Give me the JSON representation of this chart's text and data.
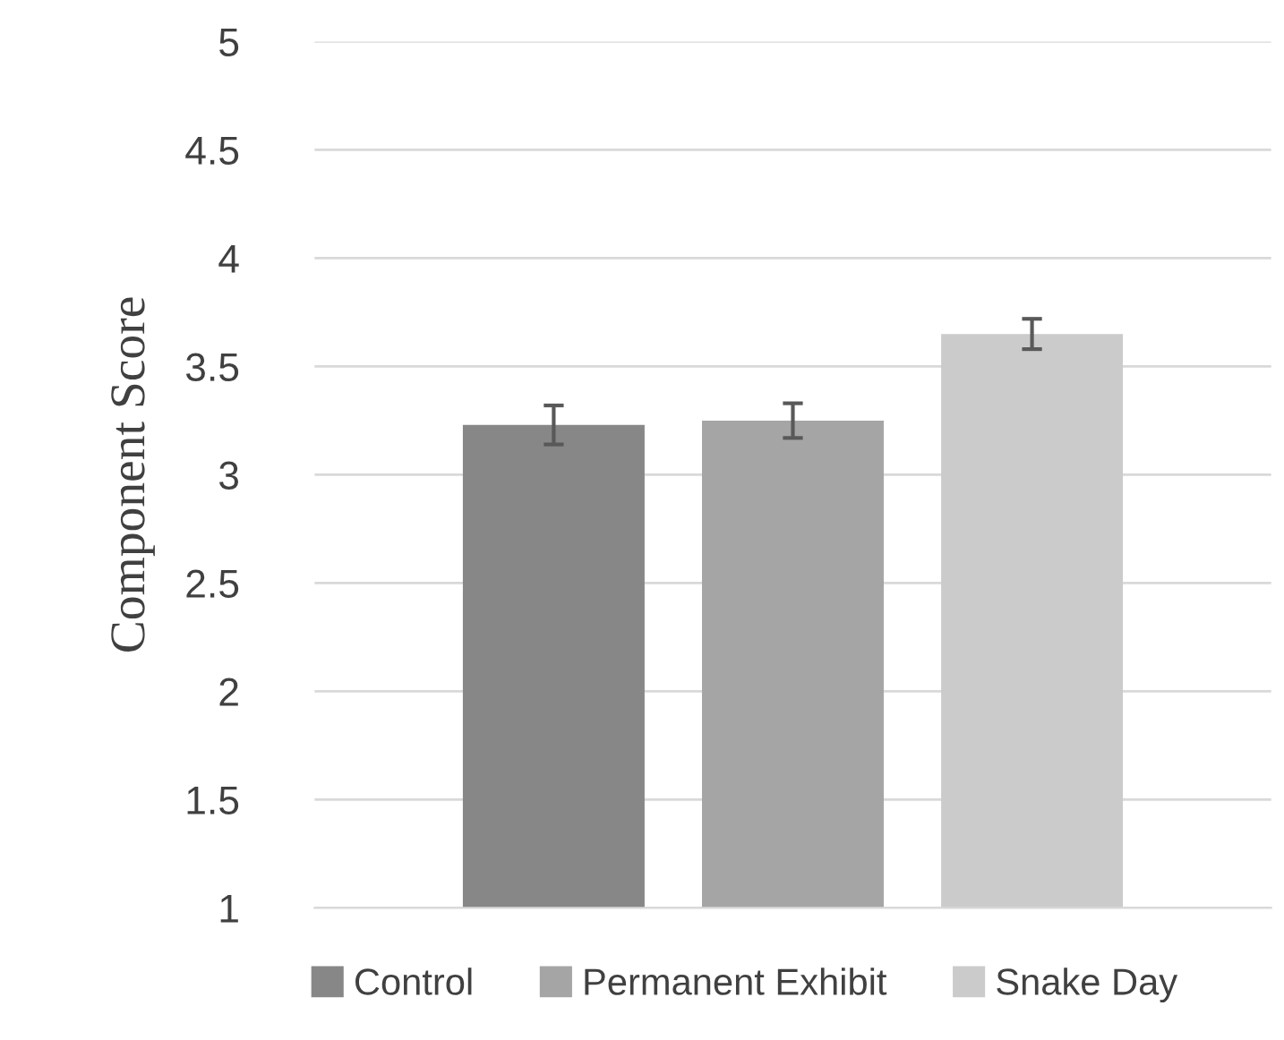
{
  "chart_data": {
    "type": "bar",
    "ylabel": "Component Score",
    "categories": [
      null
    ],
    "series": [
      {
        "name": "Control",
        "color": "#878787",
        "values": [
          3.23
        ],
        "errors": [
          0.09
        ]
      },
      {
        "name": "Permanent Exhibit",
        "color": "#a5a5a5",
        "values": [
          3.25
        ],
        "errors": [
          0.08
        ]
      },
      {
        "name": "Snake Day",
        "color": "#cbcbcb",
        "values": [
          3.65
        ],
        "errors": [
          0.07
        ]
      }
    ],
    "ylim": [
      1,
      5
    ],
    "yticks": [
      1,
      1.5,
      2,
      2.5,
      3,
      3.5,
      4,
      4.5,
      5
    ],
    "grid": "y",
    "legend": "bottom"
  }
}
